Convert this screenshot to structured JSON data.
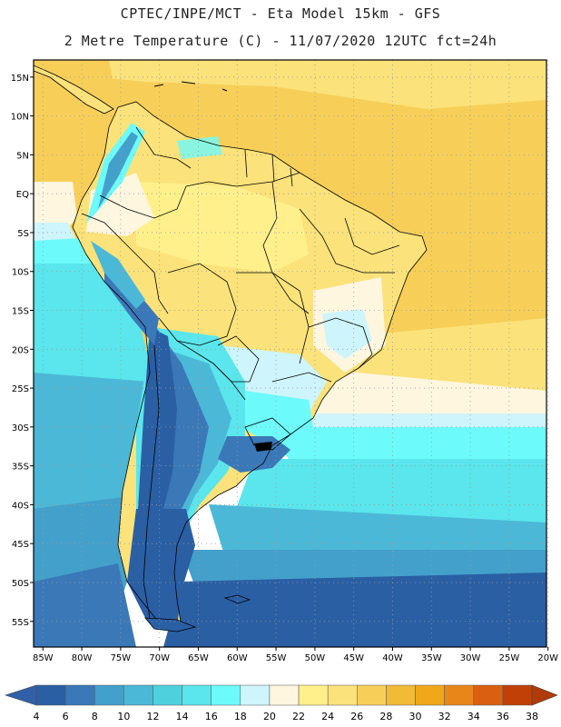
{
  "title_line1": "CPTEC/INPE/MCT -  Eta Model 15km - GFS",
  "title_line2": "2 Metre Temperature (C) - 11/07/2020 12UTC fct=24h",
  "lat_labels": [
    "15N",
    "10N",
    "5N",
    "EQ",
    "5S",
    "10S",
    "15S",
    "20S",
    "25S",
    "30S",
    "35S",
    "40S",
    "45S",
    "50S",
    "55S"
  ],
  "lat_values": [
    15,
    10,
    5,
    0,
    -5,
    -10,
    -15,
    -20,
    -25,
    -30,
    -35,
    -40,
    -45,
    -50,
    -55
  ],
  "lon_labels": [
    "85W",
    "80W",
    "75W",
    "70W",
    "65W",
    "60W",
    "55W",
    "50W",
    "45W",
    "40W",
    "35W",
    "30W",
    "25W",
    "20W"
  ],
  "lon_values": [
    -85,
    -80,
    -75,
    -70,
    -65,
    -60,
    -55,
    -50,
    -45,
    -40,
    -35,
    -30,
    -25,
    -20
  ],
  "colorbar": {
    "labels": [
      "4",
      "6",
      "8",
      "10",
      "12",
      "14",
      "16",
      "18",
      "20",
      "22",
      "24",
      "26",
      "28",
      "30",
      "32",
      "34",
      "36",
      "38"
    ],
    "colors": [
      "#2a5fa4",
      "#3a78b8",
      "#43a0cb",
      "#4cb8d7",
      "#4ed1dd",
      "#5ae6ec",
      "#6dfafa",
      "#cdf5fb",
      "#fff6e0",
      "#fff08c",
      "#fbe27a",
      "#f7cf58",
      "#f0bb36",
      "#f0a81a",
      "#e8861a",
      "#d86010",
      "#c04008"
    ],
    "low_arrow_color": "#3060a8",
    "high_arrow_color": "#b03a08"
  },
  "map_colors": {
    "warm_ocean": "#f7cf58",
    "warm_ocean_light": "#fbe27a",
    "land_warm": "#fbe27a",
    "land_pale": "#fff08c",
    "cream": "#fff6e0",
    "pale_cyan": "#cdf5fb",
    "cyan": "#6dfafa",
    "light_blue": "#5ae6ec",
    "mid_blue": "#4cb8d7",
    "blue": "#43a0cb",
    "deep_blue": "#3a78b8",
    "darkest_blue": "#2a5fa4",
    "border": "#000000"
  }
}
